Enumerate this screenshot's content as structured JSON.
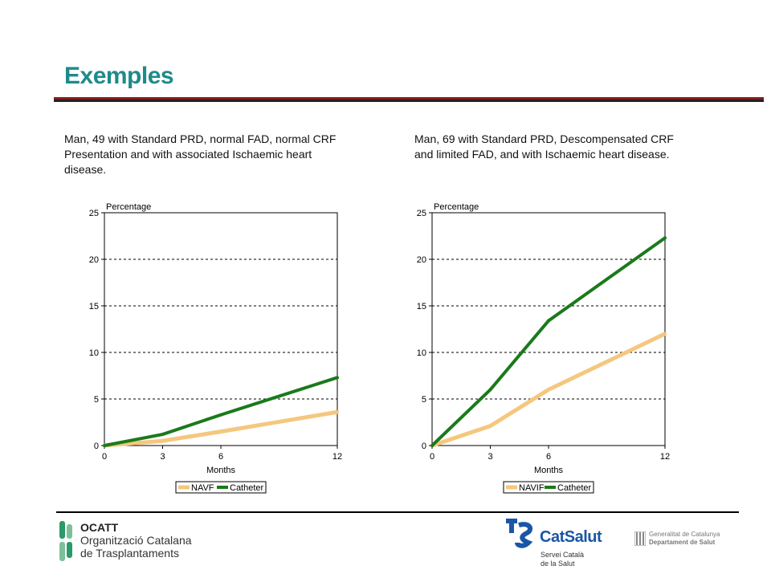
{
  "slide": {
    "title": "Exemples",
    "left_description": "Man, 49 with Standard PRD, normal FAD, normal CRF Presentation and with associated Ischaemic heart disease.",
    "right_description": "Man, 69 with Standard PRD, Descompensated CRF and limited FAD, and with Ischaemic heart disease."
  },
  "footer": {
    "ocatt_abbr": "OCATT",
    "ocatt_line1": "Organització Catalana",
    "ocatt_line2": "de Trasplantaments",
    "catsalut_name": "CatSalut",
    "catsalut_sub1": "Servei Català",
    "catsalut_sub2": "de la Salut",
    "gencat_line1": "Generalitat de Catalunya",
    "gencat_line2": "Departament de Salut"
  },
  "colors": {
    "title": "#1f8a8a",
    "navf": "#f5c77e",
    "catheter": "#1a7a1a",
    "title_rule": "#8b1a1a"
  },
  "chart_data": [
    {
      "type": "line",
      "ylabel": "Percentage",
      "xlabel": "Months",
      "x": [
        0,
        3,
        6,
        12
      ],
      "xlim": [
        0,
        12
      ],
      "ylim": [
        0,
        25
      ],
      "yticks": [
        0,
        5,
        10,
        15,
        20,
        25
      ],
      "xticks": [
        0,
        3,
        6,
        12
      ],
      "grid": "horizontal dashed",
      "legend": "bottom",
      "series": [
        {
          "name": "NAVF",
          "values": [
            0,
            0.5,
            1.5,
            3.6
          ],
          "color": "#f5c77e"
        },
        {
          "name": "Catheter",
          "values": [
            0,
            1.2,
            3.3,
            7.3
          ],
          "color": "#1a7a1a"
        }
      ]
    },
    {
      "type": "line",
      "ylabel": "Percentage",
      "xlabel": "Months",
      "x": [
        0,
        3,
        6,
        12
      ],
      "xlim": [
        0,
        12
      ],
      "ylim": [
        0,
        25
      ],
      "yticks": [
        0,
        5,
        10,
        15,
        20,
        25
      ],
      "xticks": [
        0,
        3,
        6,
        12
      ],
      "grid": "horizontal dashed",
      "legend": "bottom",
      "series": [
        {
          "name": "NAVIF",
          "values": [
            0,
            2.1,
            6.0,
            12.0
          ],
          "color": "#f5c77e"
        },
        {
          "name": "Catheter",
          "values": [
            0,
            6.0,
            13.4,
            22.3
          ],
          "color": "#1a7a1a"
        }
      ]
    }
  ]
}
